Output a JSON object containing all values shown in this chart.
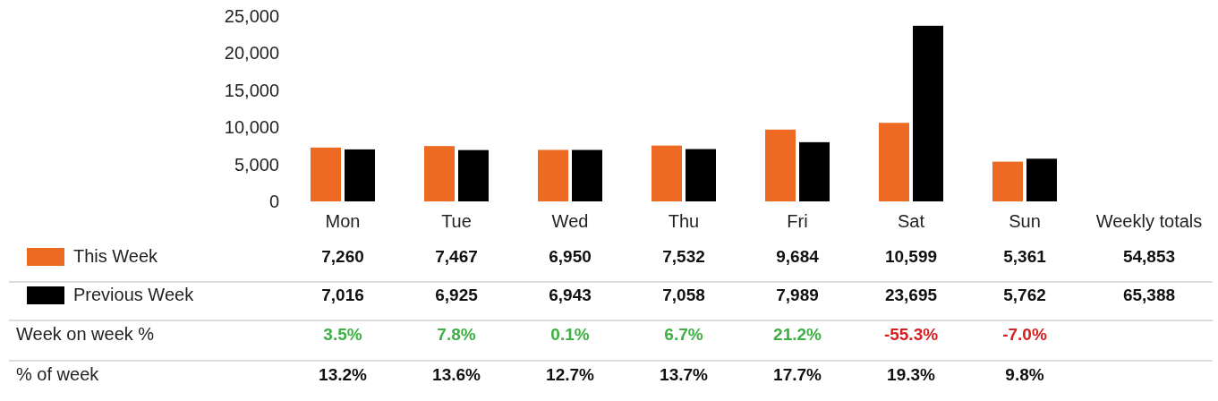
{
  "chart_data": {
    "type": "bar",
    "categories": [
      "Mon",
      "Tue",
      "Wed",
      "Thu",
      "Fri",
      "Sat",
      "Sun"
    ],
    "series": [
      {
        "name": "This Week",
        "color": "#ee6a22",
        "values": [
          7260,
          7467,
          6950,
          7532,
          9684,
          10599,
          5361
        ],
        "value_labels": [
          "7,260",
          "7,467",
          "6,950",
          "7,532",
          "9,684",
          "10,599",
          "5,361"
        ]
      },
      {
        "name": "Previous Week",
        "color": "#000000",
        "values": [
          7016,
          6925,
          6943,
          7058,
          7989,
          23695,
          5762
        ],
        "value_labels": [
          "7,016",
          "6,925",
          "6,943",
          "7,058",
          "7,989",
          "23,695",
          "5,762"
        ]
      }
    ],
    "ylim": [
      0,
      25000
    ],
    "yticks": [
      0,
      {
        "value": 5000,
        "label": "5,000"
      },
      {
        "value": 10000,
        "label": "10,000"
      },
      {
        "value": 15000,
        "label": "15,000"
      },
      {
        "value": 20000,
        "label": "20,000"
      },
      {
        "value": 25000,
        "label": "25,000"
      }
    ],
    "legend": "left",
    "grid": false,
    "annotations": [
      "Weekly totals",
      "54,853",
      "65,388",
      "Week on week %",
      "3.5%",
      "7.8%",
      "0.1%",
      "6.7%",
      "21.2%",
      "-55.3%",
      "-7.0%",
      "% of week",
      "13.2%",
      "13.6%",
      "12.7%",
      "13.7%",
      "17.7%",
      "19.3%",
      "9.8%"
    ]
  }
}
